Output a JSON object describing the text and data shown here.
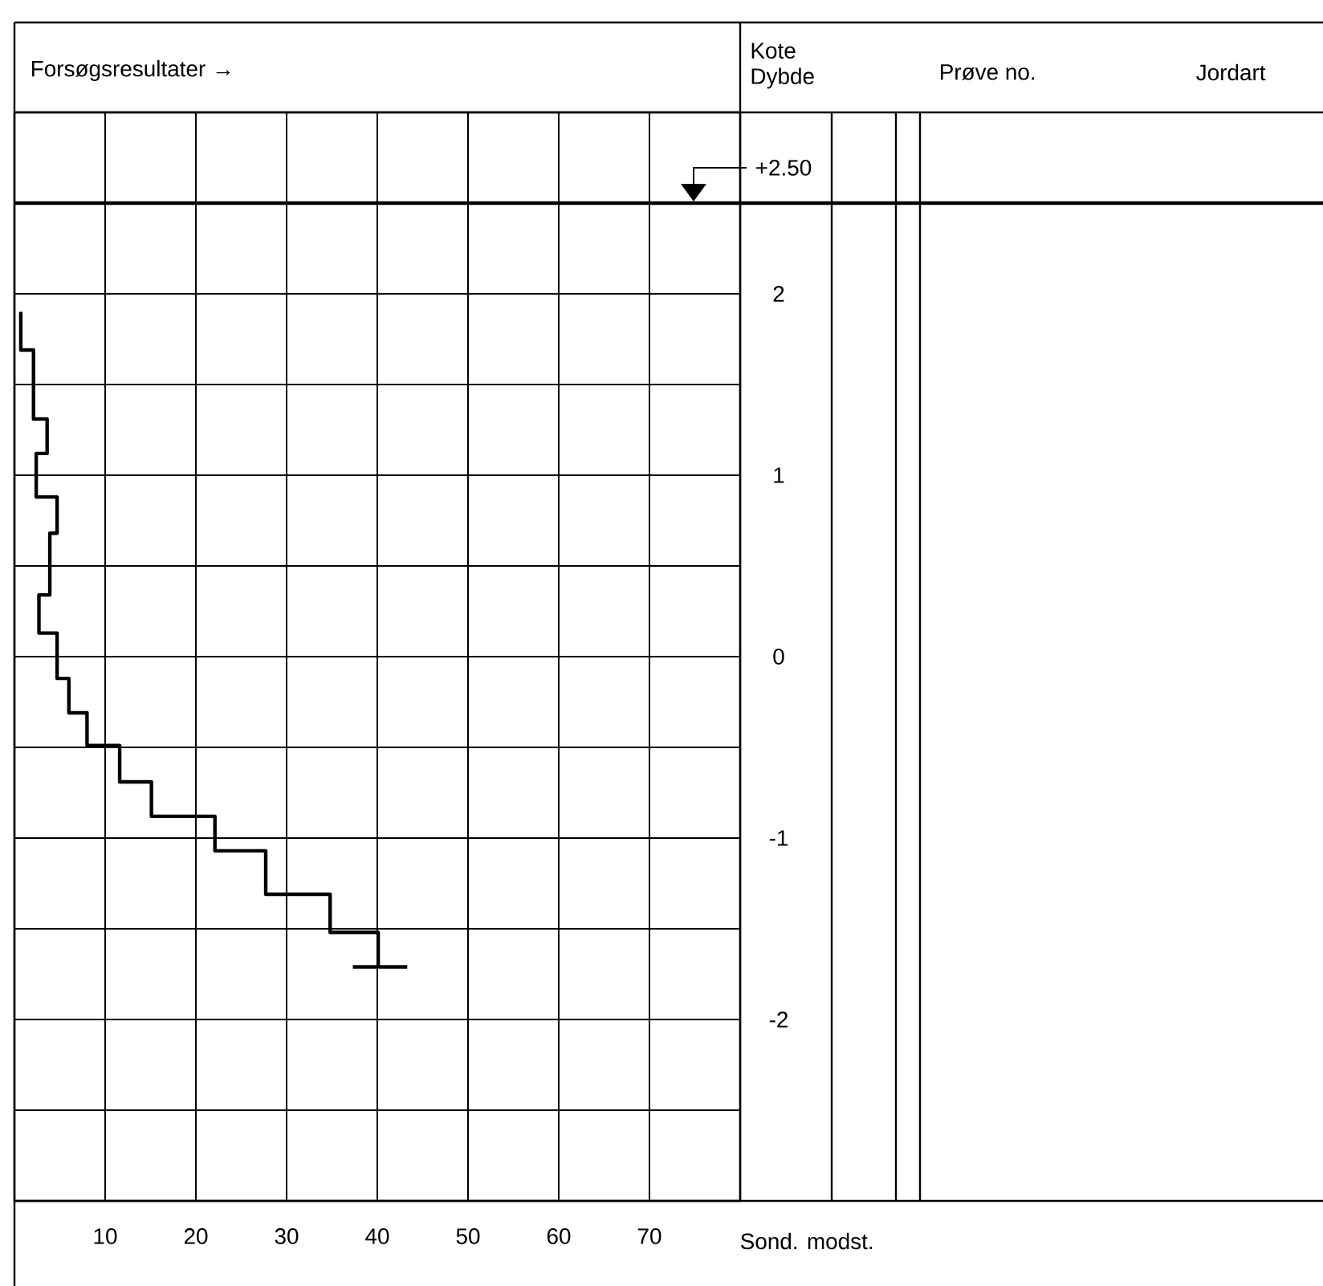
{
  "chart_data": {
    "type": "line",
    "title": "Forsøgsresultater →",
    "xlabel": "Sond. modst.",
    "ylabel": "Kote Dybde",
    "annotations": [
      "Prøve no.",
      "Jordart"
    ],
    "xlim": [
      0,
      80
    ],
    "xticks": [
      10,
      20,
      30,
      40,
      50,
      60,
      70
    ],
    "ylim": [
      -3,
      3
    ],
    "yticks": [
      {
        "value": -2.5,
        "label": null
      },
      -2,
      {
        "value": -1.5,
        "label": null
      },
      -1,
      {
        "value": -0.5,
        "label": null
      },
      0,
      {
        "value": 0.5,
        "label": null
      },
      1,
      {
        "value": 1.5,
        "label": null
      },
      2
    ],
    "grid": true,
    "ref_lines": [
      {
        "axis": "y",
        "value": 2.5,
        "label": "+2.50",
        "color": "#000000"
      }
    ],
    "series": [
      {
        "color": "#000000",
        "x": [
          0.7,
          0.7,
          2.1,
          2.1,
          3.6,
          3.6,
          2.4,
          2.4,
          4.7,
          4.7,
          3.9,
          3.9,
          2.7,
          2.7,
          4.7,
          4.7,
          6.0,
          6.0,
          8.0,
          8.0,
          11.6,
          11.6,
          15.1,
          15.1,
          22.1,
          22.1,
          27.7,
          27.7,
          34.8,
          34.8,
          40.1,
          40.1
        ],
        "values": [
          1.9,
          1.69,
          1.69,
          1.31,
          1.31,
          1.12,
          1.12,
          0.88,
          0.88,
          0.68,
          0.68,
          0.34,
          0.34,
          0.13,
          0.13,
          -0.12,
          -0.12,
          -0.31,
          -0.31,
          -0.49,
          -0.49,
          -0.69,
          -0.69,
          -0.88,
          -0.88,
          -1.07,
          -1.07,
          -1.31,
          -1.31,
          -1.52,
          -1.52,
          -1.71
        ]
      },
      {
        "color": "#000000",
        "x": [
          37.3,
          43.3
        ],
        "values": [
          -1.71,
          -1.71
        ]
      }
    ]
  }
}
